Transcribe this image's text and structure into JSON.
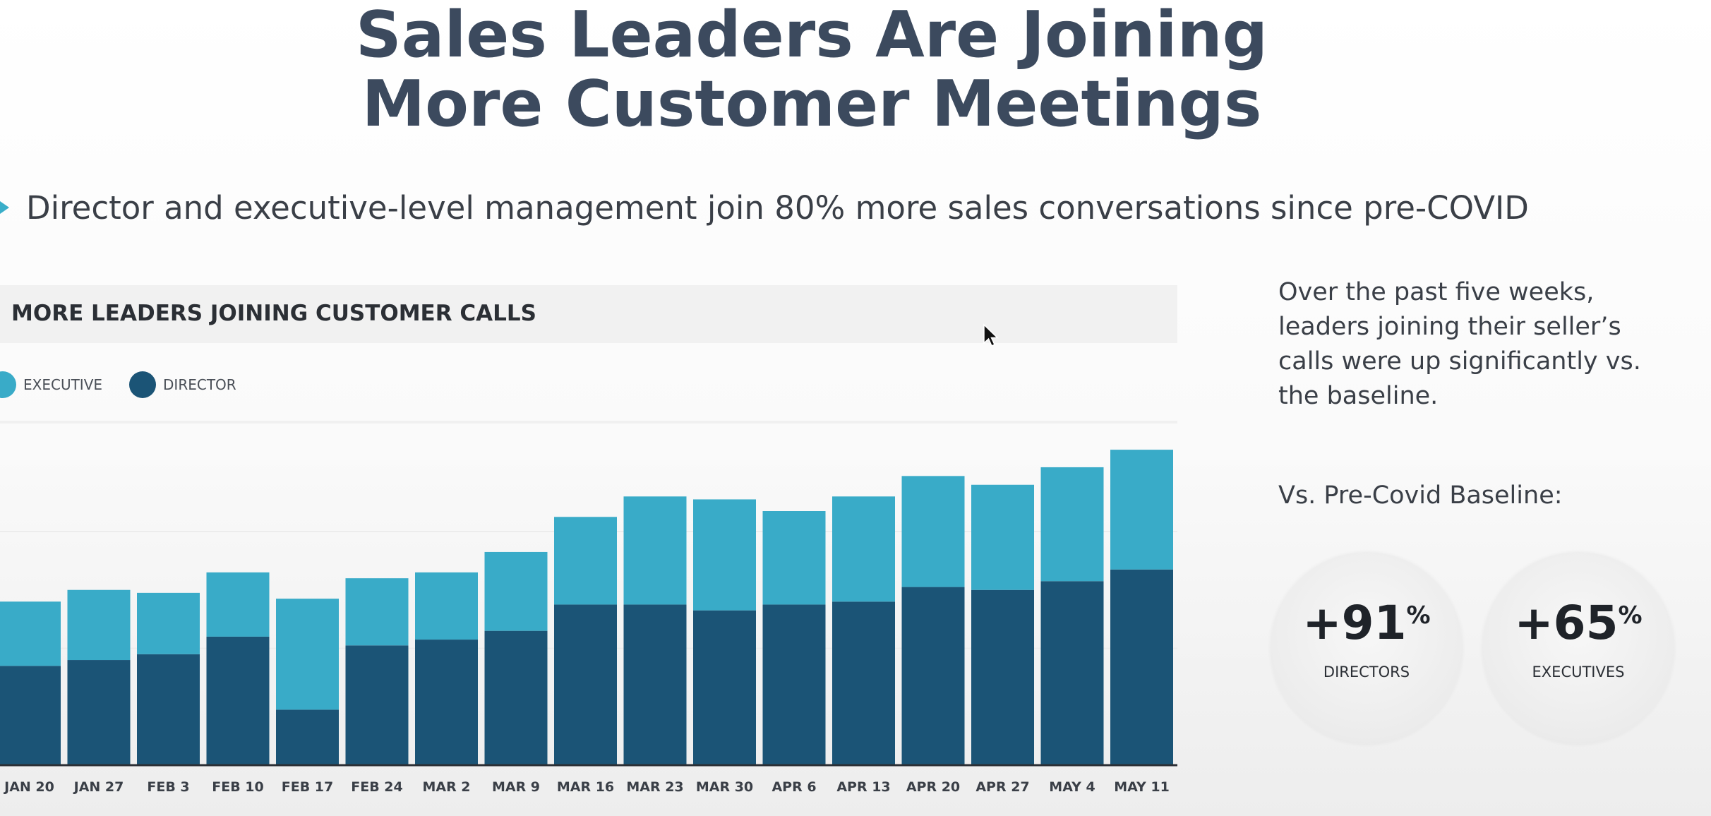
{
  "slide": {
    "title_line1": "Sales Leaders Are Joining",
    "title_line2": "More Customer Meetings",
    "bullet": "Director and executive-level management join 80% more sales conversations since pre-COVID"
  },
  "chart_data": {
    "type": "bar",
    "stacked": true,
    "title": "MORE LEADERS JOINING CUSTOMER CALLS",
    "legend_position": "top-left",
    "categories": [
      "JAN 20",
      "JAN 27",
      "FEB 3",
      "FEB 10",
      "FEB 17",
      "FEB 24",
      "MAR 2",
      "MAR 9",
      "MAR 16",
      "MAR 23",
      "MAR 30",
      "APR 6",
      "APR 13",
      "APR 20",
      "APR 27",
      "MAY 4",
      "MAY 11"
    ],
    "series": [
      {
        "name": "DIRECTOR",
        "color": "#1b5476",
        "values": [
          34,
          36,
          38,
          44,
          19,
          41,
          43,
          46,
          55,
          55,
          53,
          55,
          56,
          61,
          60,
          63,
          67
        ]
      },
      {
        "name": "EXECUTIVE",
        "color": "#39abc8",
        "values": [
          22,
          24,
          21,
          22,
          38,
          23,
          23,
          27,
          30,
          37,
          38,
          32,
          36,
          38,
          36,
          39,
          41
        ]
      }
    ],
    "ylim": [
      0,
      116
    ],
    "grid": true,
    "xlabel": "",
    "ylabel": ""
  },
  "side": {
    "summary": "Over the past five weeks, leaders joining their seller’s calls were up significantly vs. the baseline.",
    "baseline_heading": "Vs. Pre-Covid Baseline:",
    "stats": [
      {
        "value": "+91",
        "unit": "%",
        "label": "DIRECTORS"
      },
      {
        "value": "+65",
        "unit": "%",
        "label": "EXECUTIVES"
      }
    ]
  },
  "colors": {
    "executive": "#39abc8",
    "director": "#1b5476",
    "title": "#3c4a5e",
    "bullet_accent": "#3aaec9"
  },
  "icons": {
    "bullet": "triangle-right-icon",
    "pointer": "mouse-cursor-icon"
  }
}
